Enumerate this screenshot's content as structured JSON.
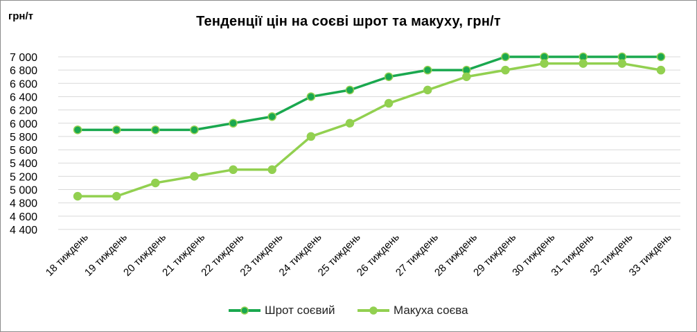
{
  "chart_data": {
    "type": "line",
    "title": "Тенденції цін на соєві шрот та макуху, грн/т",
    "ylabel": "грн/т",
    "xlabel": "",
    "categories": [
      "18 тиждень",
      "19 тиждень",
      "20 тиждень",
      "21 тиждень",
      "22 тиждень",
      "23 тиждень",
      "24 тиждень",
      "25 тиждень",
      "26 тиждень",
      "27 тиждень",
      "28 тиждень",
      "29 тиждень",
      "30 тиждень",
      "31 тиждень",
      "32 тиждень",
      "33 тиждень"
    ],
    "ylim": [
      4400,
      7000
    ],
    "yticks": [
      4400,
      4600,
      4800,
      5000,
      5200,
      5400,
      5600,
      5800,
      6000,
      6200,
      6400,
      6600,
      6800,
      7000
    ],
    "ytick_labels": [
      "4 400",
      "4 600",
      "4 800",
      "5 000",
      "5 200",
      "5 400",
      "5 600",
      "5 800",
      "6 000",
      "6 200",
      "6 400",
      "6 600",
      "6 800",
      "7 000"
    ],
    "grid": true,
    "legend_position": "bottom",
    "series": [
      {
        "name": "Шрот соєвий",
        "color": "#1aa84f",
        "values": [
          5900,
          5900,
          5900,
          5900,
          6000,
          6100,
          6400,
          6500,
          6700,
          6800,
          6800,
          7000,
          7000,
          7000,
          7000,
          7000
        ]
      },
      {
        "name": "Макуха соєва",
        "color": "#92d050",
        "values": [
          4900,
          4900,
          5100,
          5200,
          5300,
          5300,
          5800,
          6000,
          6300,
          6500,
          6700,
          6800,
          6900,
          6900,
          6900,
          6800
        ]
      }
    ]
  }
}
